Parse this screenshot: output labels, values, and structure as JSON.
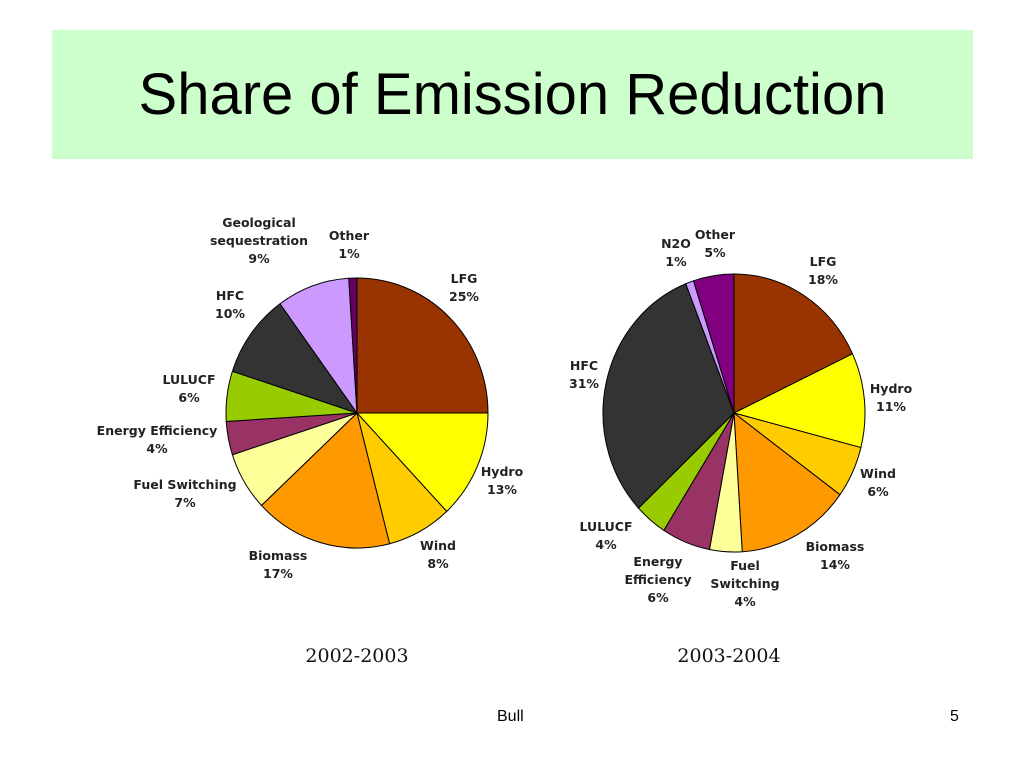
{
  "slide": {
    "title": "Share of Emission Reduction",
    "footer_center": "Bull",
    "page_number": "5"
  },
  "chart_data": [
    {
      "type": "pie",
      "caption": "2002-2003",
      "start": "12 o'clock, clockwise",
      "slices": [
        {
          "name": "LFG",
          "value": 25,
          "label": "25%",
          "color": "#993300"
        },
        {
          "name": "Hydro",
          "value": 13,
          "label": "13%",
          "color": "#ffff00"
        },
        {
          "name": "Wind",
          "value": 8,
          "label": "8%",
          "color": "#ffcc00"
        },
        {
          "name": "Biomass",
          "value": 17,
          "label": "17%",
          "color": "#ff9900"
        },
        {
          "name": "Fuel Switching",
          "value": 7,
          "label": "7%",
          "color": "#ffff99"
        },
        {
          "name": "Energy Efficiency",
          "value": 4,
          "label": "4%",
          "color": "#993366"
        },
        {
          "name": "LULUCF",
          "value": 6,
          "label": "6%",
          "color": "#99cc00"
        },
        {
          "name": "HFC",
          "value": 10,
          "label": "10%",
          "color": "#333333"
        },
        {
          "name": "Geological sequestration",
          "value": 9,
          "label": "9%",
          "color": "#cc99ff"
        },
        {
          "name": "Other",
          "value": 1,
          "label": "1%",
          "color": "#660066"
        }
      ]
    },
    {
      "type": "pie",
      "caption": "2003-2004",
      "start": "12 o'clock, clockwise",
      "slices": [
        {
          "name": "LFG",
          "value": 18,
          "label": "18%",
          "color": "#993300"
        },
        {
          "name": "Hydro",
          "value": 11,
          "label": "11%",
          "color": "#ffff00"
        },
        {
          "name": "Wind",
          "value": 6,
          "label": "6%",
          "color": "#ffcc00"
        },
        {
          "name": "Biomass",
          "value": 14,
          "label": "14%",
          "color": "#ff9900"
        },
        {
          "name": "Fuel Switching",
          "value": 4,
          "label": "4%",
          "color": "#ffff99"
        },
        {
          "name": "Energy Efficiency",
          "value": 6,
          "label": "6%",
          "color": "#993366"
        },
        {
          "name": "LULUCF",
          "value": 4,
          "label": "4%",
          "color": "#99cc00"
        },
        {
          "name": "HFC",
          "value": 31,
          "label": "31%",
          "color": "#333333"
        },
        {
          "name": "N2O",
          "value": 1,
          "label": "1%",
          "color": "#cc99ff"
        },
        {
          "name": "Other",
          "value": 5,
          "label": "5%",
          "color": "#800080"
        }
      ]
    }
  ]
}
